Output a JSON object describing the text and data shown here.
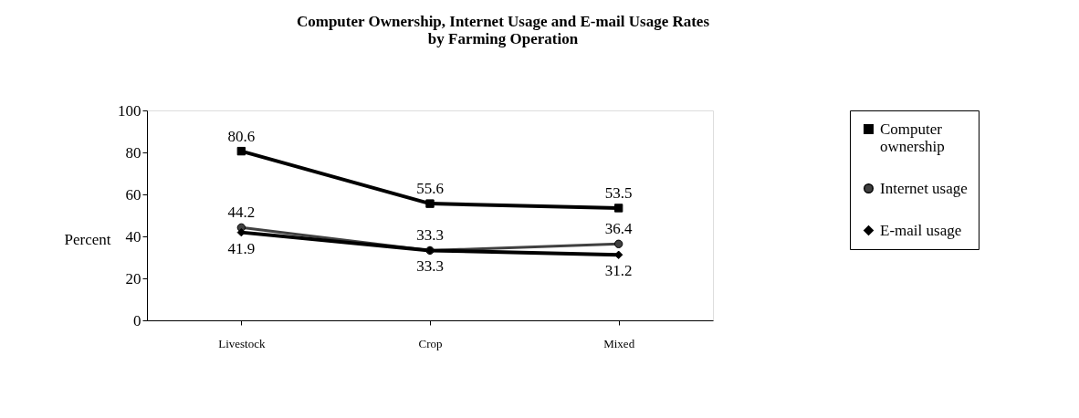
{
  "chart_data": {
    "type": "line",
    "title": [
      "Computer Ownership, Internet Usage and E-mail Usage Rates",
      "by Farming Operation"
    ],
    "ylabel": "Percent",
    "categories": [
      "Livestock",
      "Crop",
      "Mixed"
    ],
    "series": [
      {
        "name": "Computer ownership",
        "color": "#000000",
        "marker": "square",
        "values": [
          80.6,
          55.6,
          53.5
        ]
      },
      {
        "name": "Internet usage",
        "color": "#404040",
        "marker": "circle",
        "values": [
          44.2,
          33.3,
          36.4
        ]
      },
      {
        "name": "E-mail usage",
        "color": "#000000",
        "marker": "diamond",
        "values": [
          41.9,
          33.3,
          31.2
        ]
      }
    ],
    "ylim": [
      0,
      100
    ],
    "yticks": [
      0,
      20,
      40,
      60,
      80,
      100
    ],
    "grid": false,
    "legend": "right",
    "data_labels": true,
    "line_style": "solid"
  }
}
